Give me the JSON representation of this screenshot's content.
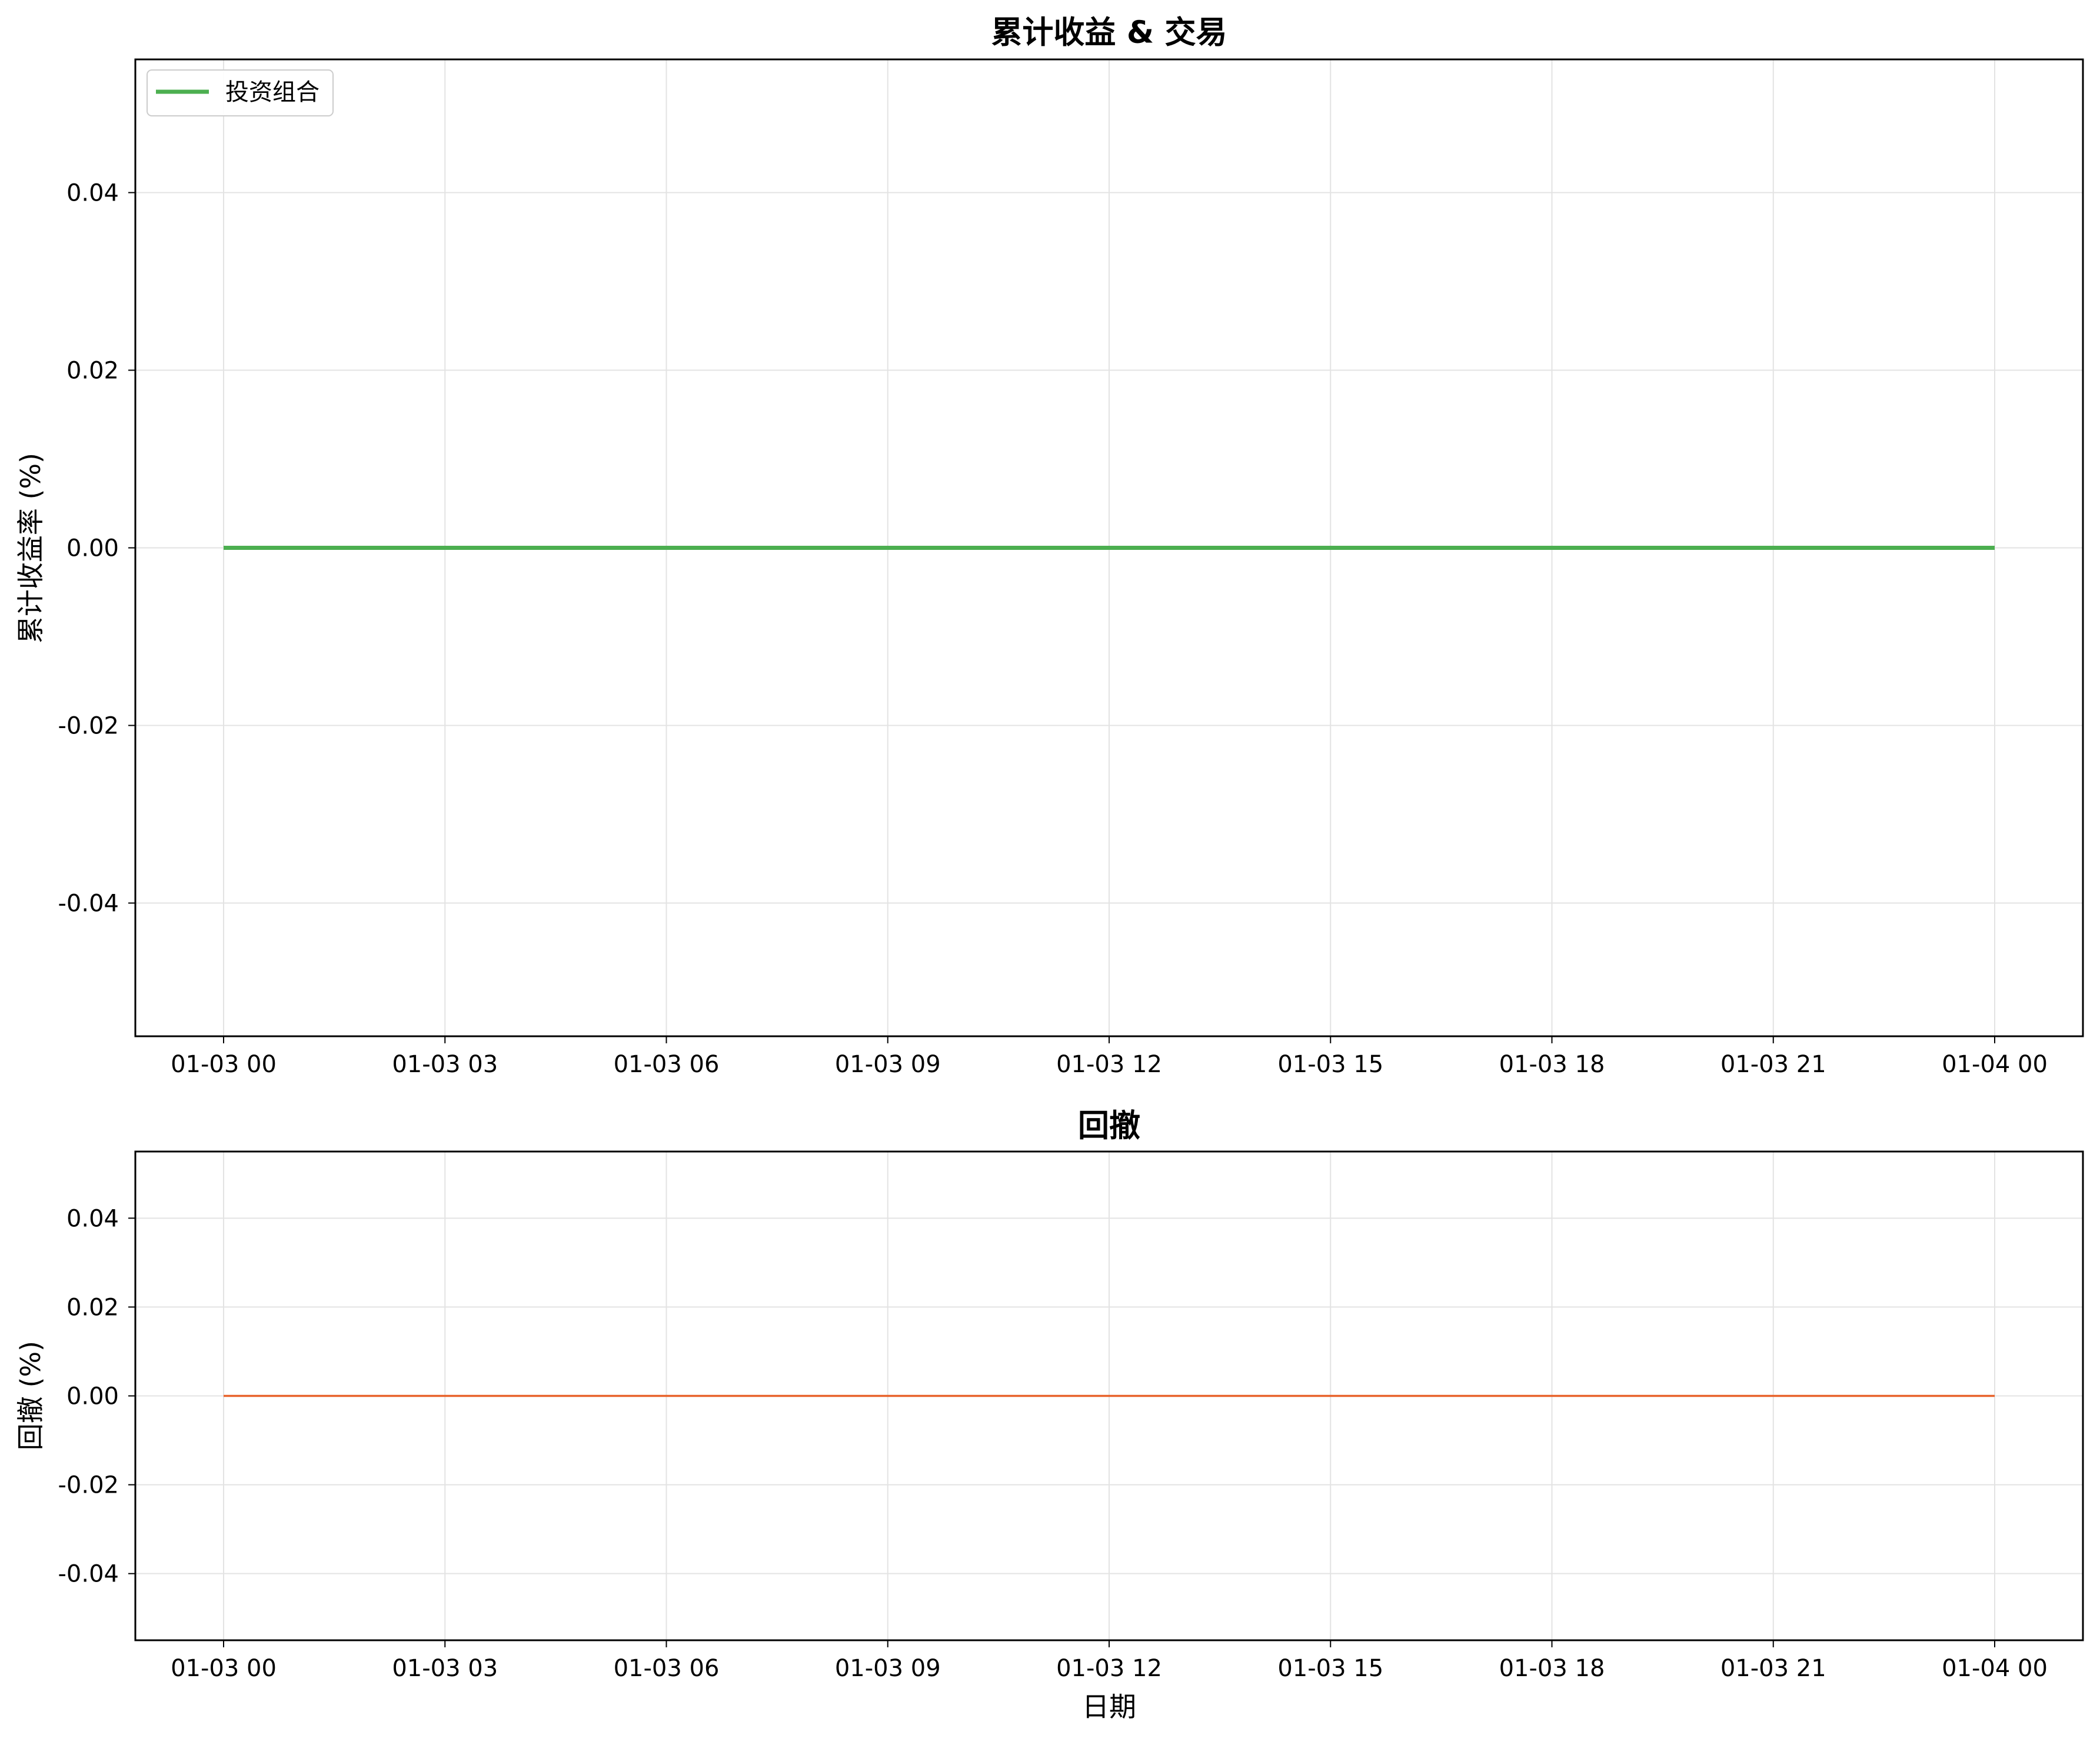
{
  "chart_data": [
    {
      "type": "line",
      "title": "累计收益 & 交易",
      "xlabel": "",
      "ylabel": "累计收益率 (%)",
      "x": [
        "01-03 00:00",
        "01-04 00:00"
      ],
      "x_ticks": [
        "01-03 00",
        "01-03 03",
        "01-03 06",
        "01-03 09",
        "01-03 12",
        "01-03 15",
        "01-03 18",
        "01-03 21",
        "01-04 00"
      ],
      "y_ticks": [
        "0.04",
        "0.02",
        "0.00",
        "-0.02",
        "-0.04"
      ],
      "ylim": [
        -0.055,
        0.055
      ],
      "grid": true,
      "legend": {
        "placement": "top-left",
        "entries": [
          "投资组合"
        ]
      },
      "series": [
        {
          "name": "投资组合",
          "color": "#4caf50",
          "values": [
            0.0,
            0.0
          ]
        }
      ]
    },
    {
      "type": "line",
      "title": "回撤",
      "xlabel": "日期",
      "ylabel": "回撤 (%)",
      "x": [
        "01-03 00:00",
        "01-04 00:00"
      ],
      "x_ticks": [
        "01-03 00",
        "01-03 03",
        "01-03 06",
        "01-03 09",
        "01-03 12",
        "01-03 15",
        "01-03 18",
        "01-03 21",
        "01-04 00"
      ],
      "y_ticks": [
        "0.04",
        "0.02",
        "0.00",
        "-0.02",
        "-0.04"
      ],
      "ylim": [
        -0.055,
        0.055
      ],
      "grid": true,
      "series": [
        {
          "color": "#e8622a",
          "values": [
            0.0,
            0.0
          ]
        }
      ]
    }
  ]
}
